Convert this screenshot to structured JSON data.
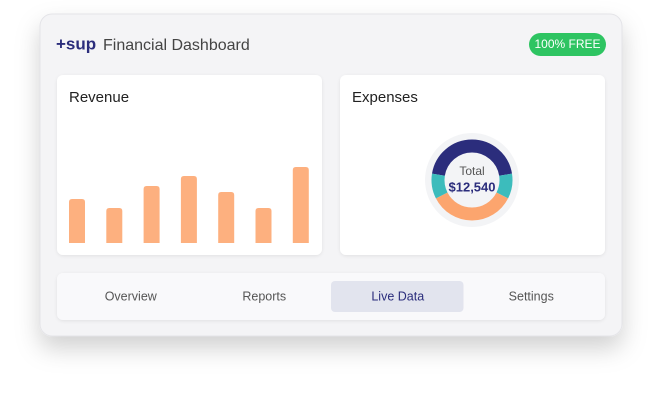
{
  "header": {
    "logo": "+sup",
    "title": "Financial Dashboard",
    "badge": "100% FREE"
  },
  "revenue": {
    "title": "Revenue",
    "type": "bar",
    "values": [
      44,
      35,
      57,
      67,
      51,
      35,
      76
    ],
    "ylim": [
      0,
      100
    ],
    "color": "#fdb07f"
  },
  "expenses": {
    "title": "Expenses",
    "type": "pie",
    "center_label": "Total",
    "total": "$12,540",
    "values": [
      45,
      10,
      35,
      10
    ],
    "colors": [
      "#2b2d7c",
      "#3cbcbc",
      "#fca56e",
      "#3cbcbc"
    ]
  },
  "tabs": [
    "Overview",
    "Reports",
    "Live Data",
    "Settings"
  ],
  "active_tab": 2
}
